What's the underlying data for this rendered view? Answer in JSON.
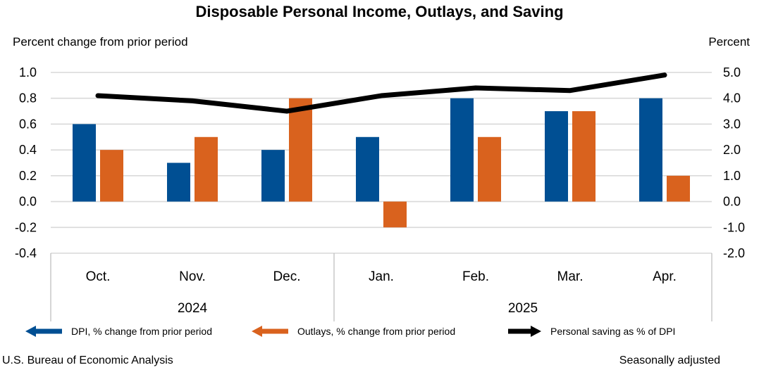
{
  "title": "Disposable Personal Income, Outlays, and Saving",
  "left_axis_label": "Percent change from prior period",
  "right_axis_label": "Percent",
  "footer": {
    "left": "U.S. Bureau of Economic Analysis",
    "right": "Seasonally adjusted"
  },
  "legend": [
    {
      "label": "DPI, % change from prior period",
      "color": "#004F93",
      "direction": "left"
    },
    {
      "label": "Outlays, % change from prior period",
      "color": "#D9621E",
      "direction": "left"
    },
    {
      "label": "Personal saving as % of DPI",
      "color": "#000000",
      "direction": "right"
    }
  ],
  "chart_data": {
    "type": "bar",
    "title": "Disposable Personal Income, Outlays, and Saving",
    "categories": [
      "Oct.",
      "Nov.",
      "Dec.",
      "Jan.",
      "Feb.",
      "Mar.",
      "Apr."
    ],
    "year_groups": [
      {
        "label": "2024",
        "start": 0,
        "end": 2
      },
      {
        "label": "2025",
        "start": 3,
        "end": 6
      }
    ],
    "series": [
      {
        "name": "DPI, % change from prior period",
        "type": "bar",
        "axis": "left",
        "color": "#004F93",
        "values": [
          0.6,
          0.3,
          0.4,
          0.5,
          0.8,
          0.7,
          0.8
        ]
      },
      {
        "name": "Outlays, % change from prior period",
        "type": "bar",
        "axis": "left",
        "color": "#D9621E",
        "values": [
          0.4,
          0.5,
          0.8,
          -0.2,
          0.5,
          0.7,
          0.2
        ]
      },
      {
        "name": "Personal saving as % of DPI",
        "type": "line",
        "axis": "right",
        "color": "#000000",
        "values": [
          4.1,
          3.9,
          3.5,
          4.1,
          4.4,
          4.3,
          4.9
        ]
      }
    ],
    "left_axis": {
      "label": "Percent change from prior period",
      "min": -0.4,
      "max": 1.0,
      "ticks": [
        "1.0",
        "0.8",
        "0.6",
        "0.4",
        "0.2",
        "0.0",
        "-0.2",
        "-0.4"
      ]
    },
    "right_axis": {
      "label": "Percent",
      "min": -2.0,
      "max": 5.0,
      "ticks": [
        "5.0",
        "4.0",
        "3.0",
        "2.0",
        "1.0",
        "0.0",
        "-1.0",
        "-2.0"
      ]
    },
    "grid": true,
    "gridline_color": "#D9D9D9",
    "axis_line_color": "#BFBFBF",
    "legend_position": "bottom"
  }
}
